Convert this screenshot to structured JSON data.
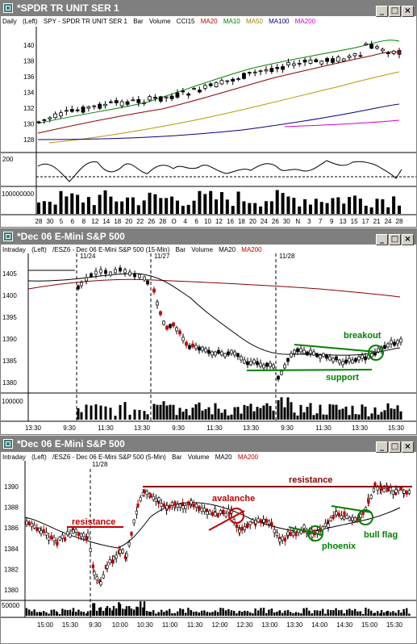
{
  "colors": {
    "title_bg": "#7f7f7f",
    "ma20": "#8b0000",
    "ma10": "#008000",
    "ma50": "#b89a00",
    "ma100": "#000080",
    "ma200": "#d000d0",
    "annot_red": "#c00000",
    "annot_green": "#008000"
  },
  "windows": [
    {
      "title": "*SPDR TR UNIT SER 1",
      "info": {
        "period": "Daily",
        "scale": "(Left)",
        "symbol": "SPY - SPDR TR UNIT SER 1",
        "bar": "Bar",
        "volume": "Volume",
        "ind1": "CCI15",
        "ma1": "MA20",
        "ma2": "MA10",
        "ma3": "MA50",
        "ma4": "MA100",
        "ma5": "MA200"
      },
      "price_ticks": [
        "140",
        "138",
        "136",
        "134",
        "132",
        "130",
        "128"
      ],
      "cci_tick": "200",
      "vol_tick": "100000000",
      "x_labels": [
        "28",
        "30",
        "5",
        "6",
        "8",
        "12",
        "14",
        "18",
        "20",
        "22",
        "26",
        "28",
        "O",
        "4",
        "6",
        "10",
        "12",
        "16",
        "18",
        "20",
        "24",
        "26",
        "30",
        "N",
        "3",
        "7",
        "9",
        "13",
        "15",
        "17",
        "21",
        "24",
        "28"
      ]
    },
    {
      "title": "*Dec 06  E-Mini S&P 500",
      "info": {
        "period": "Intraday",
        "scale": "(Left)",
        "symbol": "/ESZ6 - Dec 06  E-Mini S&P 500  (15-Min)",
        "bar": "Bar",
        "volume": "Volume",
        "ma1": "MA20",
        "ma2": "MA200"
      },
      "date_markers": [
        "11/24",
        "11/27",
        "11/28"
      ],
      "price_ticks": [
        "1405",
        "1400",
        "1395",
        "1390",
        "1385",
        "1380"
      ],
      "vol_tick": "100000",
      "x_labels": [
        "13:30",
        "9:30",
        "11:30",
        "13:30",
        "9:30",
        "11:30",
        "13:30",
        "9:30",
        "11:30",
        "13:30",
        "15:30"
      ],
      "annotations": {
        "breakout": "breakout",
        "support": "support"
      }
    },
    {
      "title": "*Dec 06  E-Mini S&P 500",
      "info": {
        "period": "Intraday",
        "scale": "(Left)",
        "symbol": "/ESZ6 - Dec 06  E-Mini S&P 500  (5-Min)",
        "bar": "Bar",
        "volume": "Volume",
        "ma1": "MA20",
        "ma2": "MA200"
      },
      "date_markers": [
        "11/28"
      ],
      "price_ticks": [
        "1390",
        "1388",
        "1386",
        "1384",
        "1382",
        "1380"
      ],
      "vol_tick": "50000",
      "x_labels": [
        "15:00",
        "15:30",
        "9:30",
        "10:00",
        "10:30",
        "11:00",
        "11:30",
        "12:00",
        "12:30",
        "13:00",
        "13:30",
        "14:00",
        "14:30",
        "15:00",
        "15:30"
      ],
      "annotations": {
        "resistance_left": "resistance",
        "resistance_top": "resistance",
        "avalanche": "avalanche",
        "phoenix": "phoenix",
        "bull_flag": "bull flag"
      }
    }
  ]
}
